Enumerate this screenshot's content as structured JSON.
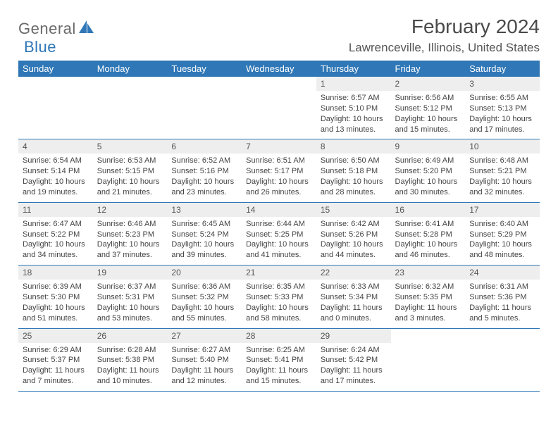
{
  "brand": {
    "part1": "General",
    "part2": "Blue"
  },
  "title": "February 2024",
  "location": "Lawrenceville, Illinois, United States",
  "colors": {
    "header_bg": "#2f77b6",
    "header_text": "#ffffff",
    "daynum_bg": "#eeeeee",
    "border": "#2f77b6",
    "logo_gray": "#6a6a6a",
    "logo_blue": "#2f77b6",
    "page_bg": "#ffffff"
  },
  "dayNames": [
    "Sunday",
    "Monday",
    "Tuesday",
    "Wednesday",
    "Thursday",
    "Friday",
    "Saturday"
  ],
  "weeks": [
    [
      null,
      null,
      null,
      null,
      {
        "n": "1",
        "sr": "6:57 AM",
        "ss": "5:10 PM",
        "dl": "10 hours and 13 minutes."
      },
      {
        "n": "2",
        "sr": "6:56 AM",
        "ss": "5:12 PM",
        "dl": "10 hours and 15 minutes."
      },
      {
        "n": "3",
        "sr": "6:55 AM",
        "ss": "5:13 PM",
        "dl": "10 hours and 17 minutes."
      }
    ],
    [
      {
        "n": "4",
        "sr": "6:54 AM",
        "ss": "5:14 PM",
        "dl": "10 hours and 19 minutes."
      },
      {
        "n": "5",
        "sr": "6:53 AM",
        "ss": "5:15 PM",
        "dl": "10 hours and 21 minutes."
      },
      {
        "n": "6",
        "sr": "6:52 AM",
        "ss": "5:16 PM",
        "dl": "10 hours and 23 minutes."
      },
      {
        "n": "7",
        "sr": "6:51 AM",
        "ss": "5:17 PM",
        "dl": "10 hours and 26 minutes."
      },
      {
        "n": "8",
        "sr": "6:50 AM",
        "ss": "5:18 PM",
        "dl": "10 hours and 28 minutes."
      },
      {
        "n": "9",
        "sr": "6:49 AM",
        "ss": "5:20 PM",
        "dl": "10 hours and 30 minutes."
      },
      {
        "n": "10",
        "sr": "6:48 AM",
        "ss": "5:21 PM",
        "dl": "10 hours and 32 minutes."
      }
    ],
    [
      {
        "n": "11",
        "sr": "6:47 AM",
        "ss": "5:22 PM",
        "dl": "10 hours and 34 minutes."
      },
      {
        "n": "12",
        "sr": "6:46 AM",
        "ss": "5:23 PM",
        "dl": "10 hours and 37 minutes."
      },
      {
        "n": "13",
        "sr": "6:45 AM",
        "ss": "5:24 PM",
        "dl": "10 hours and 39 minutes."
      },
      {
        "n": "14",
        "sr": "6:44 AM",
        "ss": "5:25 PM",
        "dl": "10 hours and 41 minutes."
      },
      {
        "n": "15",
        "sr": "6:42 AM",
        "ss": "5:26 PM",
        "dl": "10 hours and 44 minutes."
      },
      {
        "n": "16",
        "sr": "6:41 AM",
        "ss": "5:28 PM",
        "dl": "10 hours and 46 minutes."
      },
      {
        "n": "17",
        "sr": "6:40 AM",
        "ss": "5:29 PM",
        "dl": "10 hours and 48 minutes."
      }
    ],
    [
      {
        "n": "18",
        "sr": "6:39 AM",
        "ss": "5:30 PM",
        "dl": "10 hours and 51 minutes."
      },
      {
        "n": "19",
        "sr": "6:37 AM",
        "ss": "5:31 PM",
        "dl": "10 hours and 53 minutes."
      },
      {
        "n": "20",
        "sr": "6:36 AM",
        "ss": "5:32 PM",
        "dl": "10 hours and 55 minutes."
      },
      {
        "n": "21",
        "sr": "6:35 AM",
        "ss": "5:33 PM",
        "dl": "10 hours and 58 minutes."
      },
      {
        "n": "22",
        "sr": "6:33 AM",
        "ss": "5:34 PM",
        "dl": "11 hours and 0 minutes."
      },
      {
        "n": "23",
        "sr": "6:32 AM",
        "ss": "5:35 PM",
        "dl": "11 hours and 3 minutes."
      },
      {
        "n": "24",
        "sr": "6:31 AM",
        "ss": "5:36 PM",
        "dl": "11 hours and 5 minutes."
      }
    ],
    [
      {
        "n": "25",
        "sr": "6:29 AM",
        "ss": "5:37 PM",
        "dl": "11 hours and 7 minutes."
      },
      {
        "n": "26",
        "sr": "6:28 AM",
        "ss": "5:38 PM",
        "dl": "11 hours and 10 minutes."
      },
      {
        "n": "27",
        "sr": "6:27 AM",
        "ss": "5:40 PM",
        "dl": "11 hours and 12 minutes."
      },
      {
        "n": "28",
        "sr": "6:25 AM",
        "ss": "5:41 PM",
        "dl": "11 hours and 15 minutes."
      },
      {
        "n": "29",
        "sr": "6:24 AM",
        "ss": "5:42 PM",
        "dl": "11 hours and 17 minutes."
      },
      null,
      null
    ]
  ],
  "labels": {
    "sunrise": "Sunrise:",
    "sunset": "Sunset:",
    "daylight": "Daylight:"
  }
}
